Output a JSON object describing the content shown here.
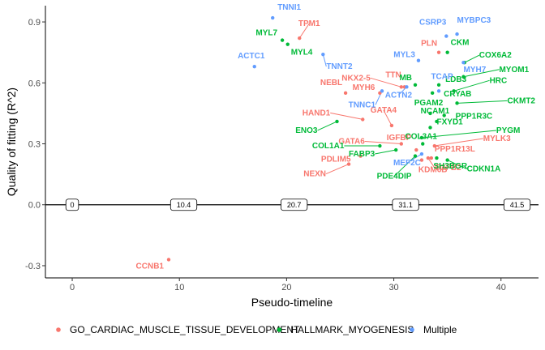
{
  "chart_data": {
    "type": "scatter",
    "title": "",
    "xlabel": "Pseudo-timeline",
    "ylabel": "Quality of fitting (R^2)",
    "xlim": [
      -2.5,
      43.5
    ],
    "ylim": [
      -0.36,
      0.98
    ],
    "xticks": [
      0,
      10,
      20,
      30,
      40
    ],
    "yticks": [
      -0.3,
      0.0,
      0.3,
      0.6,
      0.9
    ],
    "xtick_labels": [
      "0",
      "10",
      "20",
      "30",
      "40"
    ],
    "ytick_labels": [
      "-0.3",
      "0.0",
      "0.3",
      "0.6",
      "0.9"
    ],
    "hline": 0.0,
    "legend_position": "bottom",
    "series": [
      {
        "name": "GO_CARDIAC_MUSCLE_TISSUE_DEVELOPMENT",
        "color": "#F8766D",
        "points": [
          {
            "label": "TPM1",
            "x": 21.2,
            "y": 0.82
          },
          {
            "label": "PLN",
            "x": 34.2,
            "y": 0.75
          },
          {
            "label": "NKX2-5",
            "x": 30.7,
            "y": 0.58
          },
          {
            "label": "TTN",
            "x": 31.0,
            "y": 0.58
          },
          {
            "label": "NEBL",
            "x": 25.5,
            "y": 0.55
          },
          {
            "label": "MYH6",
            "x": 28.7,
            "y": 0.55
          },
          {
            "label": "HAND1",
            "x": 27.1,
            "y": 0.42
          },
          {
            "label": "GATA4",
            "x": 29.8,
            "y": 0.39
          },
          {
            "label": "GATA6",
            "x": 30.7,
            "y": 0.3
          },
          {
            "label": "MYLK3",
            "x": 33.8,
            "y": 0.29
          },
          {
            "label": "PPP1R13L",
            "x": 33.5,
            "y": 0.23
          },
          {
            "label": "PDLIM5",
            "x": 26.9,
            "y": 0.24
          },
          {
            "label": "NEXN",
            "x": 25.8,
            "y": 0.2
          },
          {
            "label": "KDM6B",
            "x": 32.6,
            "y": 0.22
          },
          {
            "label": "TGFB2",
            "x": 33.2,
            "y": 0.23
          },
          {
            "label": "IGFBP",
            "x": 32.1,
            "y": 0.27
          },
          {
            "label": "CCNB1",
            "x": 9.0,
            "y": -0.27
          }
        ]
      },
      {
        "name": "HALLMARK_MYOGENESIS",
        "color": "#00BA38",
        "points": [
          {
            "label": "MYL7",
            "x": 19.6,
            "y": 0.81
          },
          {
            "label": "MYL4",
            "x": 20.1,
            "y": 0.79
          },
          {
            "label": "CKM",
            "x": 35.0,
            "y": 0.75
          },
          {
            "label": "COX6A2",
            "x": 36.6,
            "y": 0.7
          },
          {
            "label": "MYOM1",
            "x": 36.5,
            "y": 0.63
          },
          {
            "label": "MB",
            "x": 32.0,
            "y": 0.59
          },
          {
            "label": "LDB3",
            "x": 34.2,
            "y": 0.59
          },
          {
            "label": "HRC",
            "x": 35.6,
            "y": 0.56
          },
          {
            "label": "CRYAB",
            "x": 33.6,
            "y": 0.55
          },
          {
            "label": "CKMT2",
            "x": 35.9,
            "y": 0.5
          },
          {
            "label": "PGAM2",
            "x": 33.4,
            "y": 0.45
          },
          {
            "label": "PPP1R3C",
            "x": 34.7,
            "y": 0.44
          },
          {
            "label": "NCAM1",
            "x": 34.0,
            "y": 0.41
          },
          {
            "label": "FXYD1",
            "x": 33.4,
            "y": 0.38
          },
          {
            "label": "PYGM",
            "x": 32.6,
            "y": 0.33
          },
          {
            "label": "COL3A1",
            "x": 32.7,
            "y": 0.3
          },
          {
            "label": "ENO3",
            "x": 24.7,
            "y": 0.41
          },
          {
            "label": "COL1A1",
            "x": 28.7,
            "y": 0.29
          },
          {
            "label": "FABP3",
            "x": 30.2,
            "y": 0.27
          },
          {
            "label": "SH3BGR",
            "x": 34.0,
            "y": 0.23
          },
          {
            "label": "CDKN1A",
            "x": 35.0,
            "y": 0.22
          },
          {
            "label": "PDE4DIP",
            "x": 32.0,
            "y": 0.24
          }
        ]
      },
      {
        "name": "Multiple",
        "color": "#619CFF",
        "points": [
          {
            "label": "TNNI1",
            "x": 18.7,
            "y": 0.92
          },
          {
            "label": "TNNT2",
            "x": 23.4,
            "y": 0.74
          },
          {
            "label": "ACTC1",
            "x": 17.0,
            "y": 0.68
          },
          {
            "label": "CSRP3",
            "x": 34.9,
            "y": 0.83
          },
          {
            "label": "MYBPC3",
            "x": 35.9,
            "y": 0.84
          },
          {
            "label": "MYL3",
            "x": 32.3,
            "y": 0.71
          },
          {
            "label": "MYH7",
            "x": 36.5,
            "y": 0.7
          },
          {
            "label": "TCAP",
            "x": 34.2,
            "y": 0.56
          },
          {
            "label": "ACTN2",
            "x": 31.2,
            "y": 0.58
          },
          {
            "label": "TNNC1",
            "x": 28.9,
            "y": 0.56
          },
          {
            "label": "MEF2C",
            "x": 32.6,
            "y": 0.25
          }
        ]
      }
    ],
    "boxes": [
      {
        "x": 0.0,
        "label": "0"
      },
      {
        "x": 10.4,
        "label": "10.4"
      },
      {
        "x": 20.7,
        "label": "20.7"
      },
      {
        "x": 31.1,
        "label": "31.1"
      },
      {
        "x": 41.5,
        "label": "41.5"
      }
    ]
  }
}
